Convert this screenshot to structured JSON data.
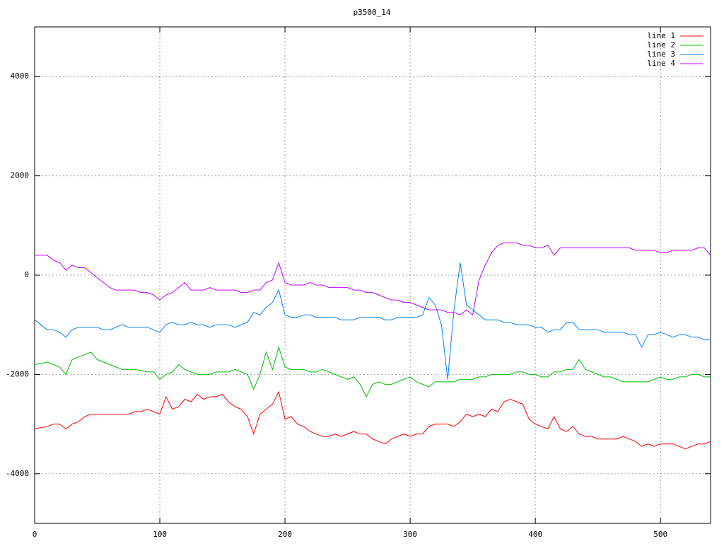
{
  "chart_data": {
    "type": "line",
    "title": "p3500_14",
    "x": [
      0,
      5,
      10,
      15,
      20,
      25,
      30,
      35,
      40,
      45,
      50,
      55,
      60,
      65,
      70,
      75,
      80,
      85,
      90,
      95,
      100,
      105,
      110,
      115,
      120,
      125,
      130,
      135,
      140,
      145,
      150,
      155,
      160,
      165,
      170,
      175,
      180,
      185,
      190,
      195,
      200,
      205,
      210,
      215,
      220,
      225,
      230,
      235,
      240,
      245,
      250,
      255,
      260,
      265,
      270,
      275,
      280,
      285,
      290,
      295,
      300,
      305,
      310,
      315,
      320,
      325,
      330,
      335,
      340,
      345,
      350,
      355,
      360,
      365,
      370,
      375,
      380,
      385,
      390,
      395,
      400,
      405,
      410,
      415,
      420,
      425,
      430,
      435,
      440,
      445,
      450,
      455,
      460,
      465,
      470,
      475,
      480,
      485,
      490,
      495,
      500,
      505,
      510,
      515,
      520,
      525,
      530,
      535,
      540
    ],
    "series": [
      {
        "name": "line 1",
        "color": "#ff0000",
        "values": [
          -3100,
          -3070,
          -3050,
          -3000,
          -3000,
          -3100,
          -3000,
          -2950,
          -2850,
          -2800,
          -2800,
          -2800,
          -2800,
          -2800,
          -2800,
          -2800,
          -2750,
          -2750,
          -2700,
          -2750,
          -2800,
          -2450,
          -2700,
          -2650,
          -2500,
          -2550,
          -2400,
          -2500,
          -2450,
          -2450,
          -2400,
          -2550,
          -2650,
          -2700,
          -2850,
          -3200,
          -2800,
          -2700,
          -2600,
          -2350,
          -2900,
          -2850,
          -3000,
          -3050,
          -3150,
          -3200,
          -3250,
          -3250,
          -3200,
          -3250,
          -3200,
          -3150,
          -3200,
          -3200,
          -3300,
          -3350,
          -3400,
          -3300,
          -3250,
          -3200,
          -3250,
          -3200,
          -3200,
          -3050,
          -3000,
          -3000,
          -3000,
          -3050,
          -2950,
          -2800,
          -2850,
          -2800,
          -2850,
          -2700,
          -2750,
          -2550,
          -2500,
          -2550,
          -2600,
          -2900,
          -3000,
          -3050,
          -3100,
          -2850,
          -3100,
          -3150,
          -3050,
          -3200,
          -3250,
          -3250,
          -3300,
          -3300,
          -3300,
          -3300,
          -3250,
          -3300,
          -3350,
          -3450,
          -3400,
          -3450,
          -3400,
          -3400,
          -3400,
          -3450,
          -3500,
          -3450,
          -3400,
          -3400,
          -3350
        ]
      },
      {
        "name": "line 2",
        "color": "#00c000",
        "values": [
          -1800,
          -1780,
          -1750,
          -1800,
          -1850,
          -2000,
          -1700,
          -1650,
          -1600,
          -1550,
          -1700,
          -1750,
          -1800,
          -1850,
          -1900,
          -1900,
          -1900,
          -1920,
          -1950,
          -1950,
          -2100,
          -2000,
          -1950,
          -1800,
          -1900,
          -1950,
          -2000,
          -2000,
          -2000,
          -1950,
          -1950,
          -1950,
          -1900,
          -1950,
          -2000,
          -2300,
          -2000,
          -1550,
          -1900,
          -1450,
          -1850,
          -1900,
          -1900,
          -1900,
          -1950,
          -1950,
          -1900,
          -1950,
          -2000,
          -2050,
          -2100,
          -2050,
          -2200,
          -2450,
          -2200,
          -2150,
          -2200,
          -2200,
          -2150,
          -2100,
          -2050,
          -2150,
          -2200,
          -2250,
          -2150,
          -2150,
          -2150,
          -2150,
          -2100,
          -2100,
          -2100,
          -2050,
          -2050,
          -2000,
          -2000,
          -2000,
          -2000,
          -1950,
          -1950,
          -2000,
          -2000,
          -2050,
          -2050,
          -1950,
          -1950,
          -1900,
          -1900,
          -1700,
          -1900,
          -1950,
          -2000,
          -2050,
          -2050,
          -2100,
          -2150,
          -2150,
          -2150,
          -2150,
          -2150,
          -2100,
          -2050,
          -2100,
          -2100,
          -2050,
          -2050,
          -2000,
          -2000,
          -2050,
          -2050
        ]
      },
      {
        "name": "line 3",
        "color": "#0080ff",
        "values": [
          -900,
          -1000,
          -1100,
          -1100,
          -1150,
          -1250,
          -1100,
          -1050,
          -1050,
          -1050,
          -1050,
          -1100,
          -1100,
          -1050,
          -1000,
          -1050,
          -1050,
          -1050,
          -1050,
          -1100,
          -1150,
          -1000,
          -950,
          -1000,
          -1000,
          -950,
          -1000,
          -1000,
          -1050,
          -1000,
          -1000,
          -1000,
          -1050,
          -1000,
          -950,
          -750,
          -800,
          -650,
          -550,
          -300,
          -800,
          -850,
          -850,
          -800,
          -800,
          -850,
          -850,
          -850,
          -850,
          -900,
          -900,
          -900,
          -850,
          -850,
          -850,
          -850,
          -900,
          -900,
          -850,
          -850,
          -850,
          -850,
          -800,
          -450,
          -600,
          -1000,
          -2100,
          -700,
          250,
          -600,
          -700,
          -800,
          -900,
          -900,
          -900,
          -950,
          -950,
          -1000,
          -1000,
          -1000,
          -1050,
          -1050,
          -1150,
          -1100,
          -1100,
          -950,
          -950,
          -1100,
          -1100,
          -1100,
          -1100,
          -1150,
          -1150,
          -1150,
          -1150,
          -1200,
          -1200,
          -1450,
          -1200,
          -1200,
          -1150,
          -1200,
          -1250,
          -1200,
          -1200,
          -1250,
          -1250,
          -1300,
          -1300
        ]
      },
      {
        "name": "line 4",
        "color": "#c000ff",
        "values": [
          400,
          400,
          400,
          300,
          250,
          100,
          200,
          150,
          150,
          50,
          -50,
          -150,
          -250,
          -300,
          -300,
          -300,
          -300,
          -350,
          -350,
          -400,
          -500,
          -400,
          -350,
          -250,
          -150,
          -300,
          -300,
          -300,
          -250,
          -300,
          -300,
          -300,
          -300,
          -350,
          -350,
          -300,
          -300,
          -150,
          -100,
          250,
          -150,
          -200,
          -200,
          -200,
          -150,
          -200,
          -200,
          -250,
          -250,
          -250,
          -250,
          -300,
          -300,
          -350,
          -350,
          -400,
          -450,
          -500,
          -500,
          -550,
          -550,
          -600,
          -650,
          -700,
          -700,
          -700,
          -750,
          -750,
          -800,
          -700,
          -800,
          -100,
          200,
          450,
          600,
          650,
          650,
          650,
          600,
          600,
          550,
          550,
          600,
          400,
          550,
          550,
          550,
          550,
          550,
          550,
          550,
          550,
          550,
          550,
          550,
          550,
          500,
          500,
          500,
          500,
          450,
          450,
          500,
          500,
          500,
          500,
          550,
          550,
          400
        ]
      }
    ],
    "xlim": [
      0,
      540
    ],
    "ylim": [
      -5000,
      5000
    ],
    "xticks": [
      0,
      100,
      200,
      300,
      400,
      500
    ],
    "yticks": [
      -4000,
      -2000,
      0,
      2000,
      4000
    ],
    "grid": true,
    "legend": "top-right"
  }
}
